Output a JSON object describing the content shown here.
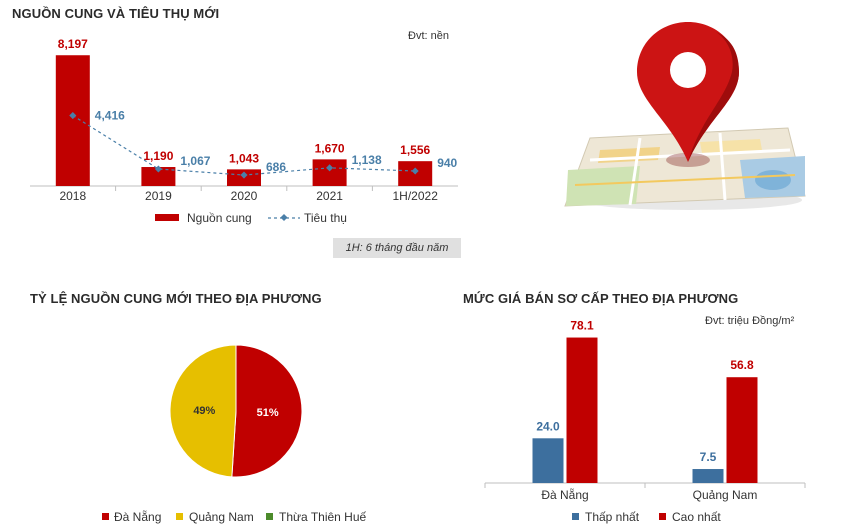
{
  "colors": {
    "red": "#c00000",
    "blue_line": "#4a7fa8",
    "blue_bar": "#3d6f9e",
    "yellow": "#e6bf00",
    "green": "#4c8b2b",
    "axis": "#bfbfbf"
  },
  "titles": {
    "supply": "NGUỒN CUNG VÀ TIÊU THỤ MỚI",
    "ratio": "TỶ LỆ NGUỒN CUNG MỚI THEO ĐỊA PHƯƠNG",
    "price": "MỨC GIÁ BÁN SƠ CẤP THEO ĐỊA PHƯƠNG"
  },
  "units": {
    "supply": "Đvt: nền",
    "price": "Đvt: triệu Đồng/m²"
  },
  "footnote": "1H: 6 tháng đầu năm",
  "illustration": {
    "icon": "map-location-pin-icon"
  },
  "chart_data": [
    {
      "type": "bar",
      "title": "NGUỒN CUNG VÀ TIÊU THỤ MỚI",
      "categories": [
        "2018",
        "2019",
        "2020",
        "2021",
        "1H/2022"
      ],
      "series": [
        {
          "name": "Nguồn cung",
          "type": "bar",
          "values": [
            8197,
            1190,
            1043,
            1670,
            1556
          ],
          "labels": [
            "8,197",
            "1,190",
            "1,043",
            "1,670",
            "1,556"
          ]
        },
        {
          "name": "Tiêu thụ",
          "type": "line",
          "values": [
            4416,
            1067,
            686,
            1138,
            940
          ],
          "labels": [
            "4,416",
            "1,067",
            "686",
            "1,138",
            "940"
          ]
        }
      ],
      "ylim": [
        0,
        8400
      ],
      "legend": "bottom"
    },
    {
      "type": "pie",
      "title": "TỶ LỆ NGUỒN CUNG MỚI THEO ĐỊA PHƯƠNG",
      "categories": [
        "Đà Nẵng",
        "Quảng Nam",
        "Thừa Thiên Huế"
      ],
      "values": [
        51,
        49,
        0
      ],
      "labels": [
        "51%",
        "49%",
        ""
      ],
      "legend": "bottom"
    },
    {
      "type": "bar",
      "title": "MỨC GIÁ BÁN SƠ CẤP THEO ĐỊA PHƯƠNG",
      "categories": [
        "Đà Nẵng",
        "Quảng Nam"
      ],
      "series": [
        {
          "name": "Thấp nhất",
          "values": [
            24.0,
            7.5
          ],
          "labels": [
            "24.0",
            "7.5"
          ]
        },
        {
          "name": "Cao nhất",
          "values": [
            78.1,
            56.8
          ],
          "labels": [
            "78.1",
            "56.8"
          ]
        }
      ],
      "ylim": [
        0,
        80
      ],
      "legend": "bottom"
    }
  ]
}
